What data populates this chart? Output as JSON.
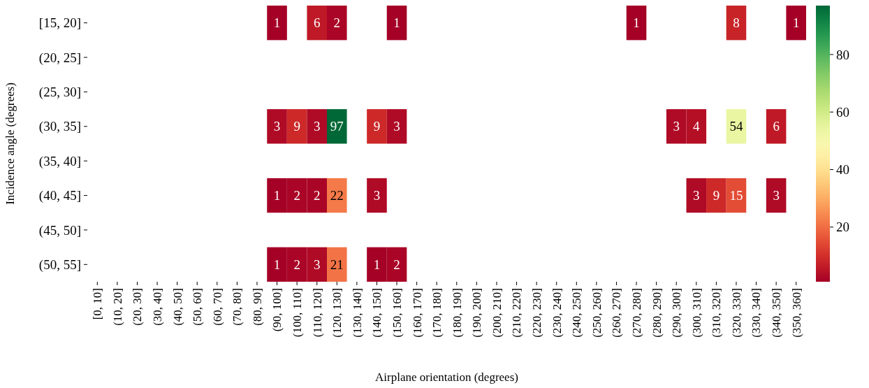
{
  "chart_data": {
    "type": "heatmap",
    "xlabel": "Airplane orientation (degrees)",
    "ylabel": "Incidence angle (degrees)",
    "categories": [
      "[0, 10]",
      "(10, 20]",
      "(20, 30]",
      "(30, 40]",
      "(40, 50]",
      "(50, 60]",
      "(60, 70]",
      "(70, 80]",
      "(80, 90]",
      "(90, 100]",
      "(100, 110]",
      "(110, 120]",
      "(120, 130]",
      "(130, 140]",
      "(140, 150]",
      "(150, 160]",
      "(160, 170]",
      "(170, 180]",
      "(180, 190]",
      "(190, 200]",
      "(200, 210]",
      "(210, 220]",
      "(220, 230]",
      "(230, 240]",
      "(240, 250]",
      "(250, 260]",
      "(260, 270]",
      "(270, 280]",
      "(280, 290]",
      "(290, 300]",
      "(300, 310]",
      "(310, 320]",
      "(320, 330]",
      "(330, 340]",
      "(340, 350]",
      "(350, 360]"
    ],
    "y_categories": [
      "[15, 20]",
      "(20, 25]",
      "(25, 30]",
      "(30, 35]",
      "(35, 40]",
      "(40, 45]",
      "(45, 50]",
      "(50, 55]"
    ],
    "cells": [
      [
        null,
        null,
        null,
        null,
        null,
        null,
        null,
        null,
        null,
        1,
        null,
        6,
        2,
        null,
        null,
        1,
        null,
        null,
        null,
        null,
        null,
        null,
        null,
        null,
        null,
        null,
        null,
        1,
        null,
        null,
        null,
        null,
        8,
        null,
        null,
        1
      ],
      [
        null,
        null,
        null,
        null,
        null,
        null,
        null,
        null,
        null,
        null,
        null,
        null,
        null,
        null,
        null,
        null,
        null,
        null,
        null,
        null,
        null,
        null,
        null,
        null,
        null,
        null,
        null,
        null,
        null,
        null,
        null,
        null,
        null,
        null,
        null,
        null
      ],
      [
        null,
        null,
        null,
        null,
        null,
        null,
        null,
        null,
        null,
        null,
        null,
        null,
        null,
        null,
        null,
        null,
        null,
        null,
        null,
        null,
        null,
        null,
        null,
        null,
        null,
        null,
        null,
        null,
        null,
        null,
        null,
        null,
        null,
        null,
        null,
        null
      ],
      [
        null,
        null,
        null,
        null,
        null,
        null,
        null,
        null,
        null,
        3,
        9,
        3,
        97,
        null,
        9,
        3,
        null,
        null,
        null,
        null,
        null,
        null,
        null,
        null,
        null,
        null,
        null,
        null,
        null,
        3,
        4,
        null,
        54,
        null,
        6,
        null
      ],
      [
        null,
        null,
        null,
        null,
        null,
        null,
        null,
        null,
        null,
        null,
        null,
        null,
        null,
        null,
        null,
        null,
        null,
        null,
        null,
        null,
        null,
        null,
        null,
        null,
        null,
        null,
        null,
        null,
        null,
        null,
        null,
        null,
        null,
        null,
        null,
        null
      ],
      [
        null,
        null,
        null,
        null,
        null,
        null,
        null,
        null,
        null,
        1,
        2,
        2,
        22,
        null,
        3,
        null,
        null,
        null,
        null,
        null,
        null,
        null,
        null,
        null,
        null,
        null,
        null,
        null,
        null,
        null,
        3,
        9,
        15,
        null,
        3,
        null
      ],
      [
        null,
        null,
        null,
        null,
        null,
        null,
        null,
        null,
        null,
        null,
        null,
        null,
        null,
        null,
        null,
        null,
        null,
        null,
        null,
        null,
        null,
        null,
        null,
        null,
        null,
        null,
        null,
        null,
        null,
        null,
        null,
        null,
        null,
        null,
        null,
        null
      ],
      [
        null,
        null,
        null,
        null,
        null,
        null,
        null,
        null,
        null,
        1,
        2,
        3,
        21,
        null,
        1,
        2,
        null,
        null,
        null,
        null,
        null,
        null,
        null,
        null,
        null,
        null,
        null,
        null,
        null,
        null,
        null,
        null,
        null,
        null,
        null,
        null
      ]
    ],
    "clim": [
      1,
      97
    ],
    "cticks": [
      20,
      40,
      60,
      80
    ],
    "data_labels": true
  }
}
